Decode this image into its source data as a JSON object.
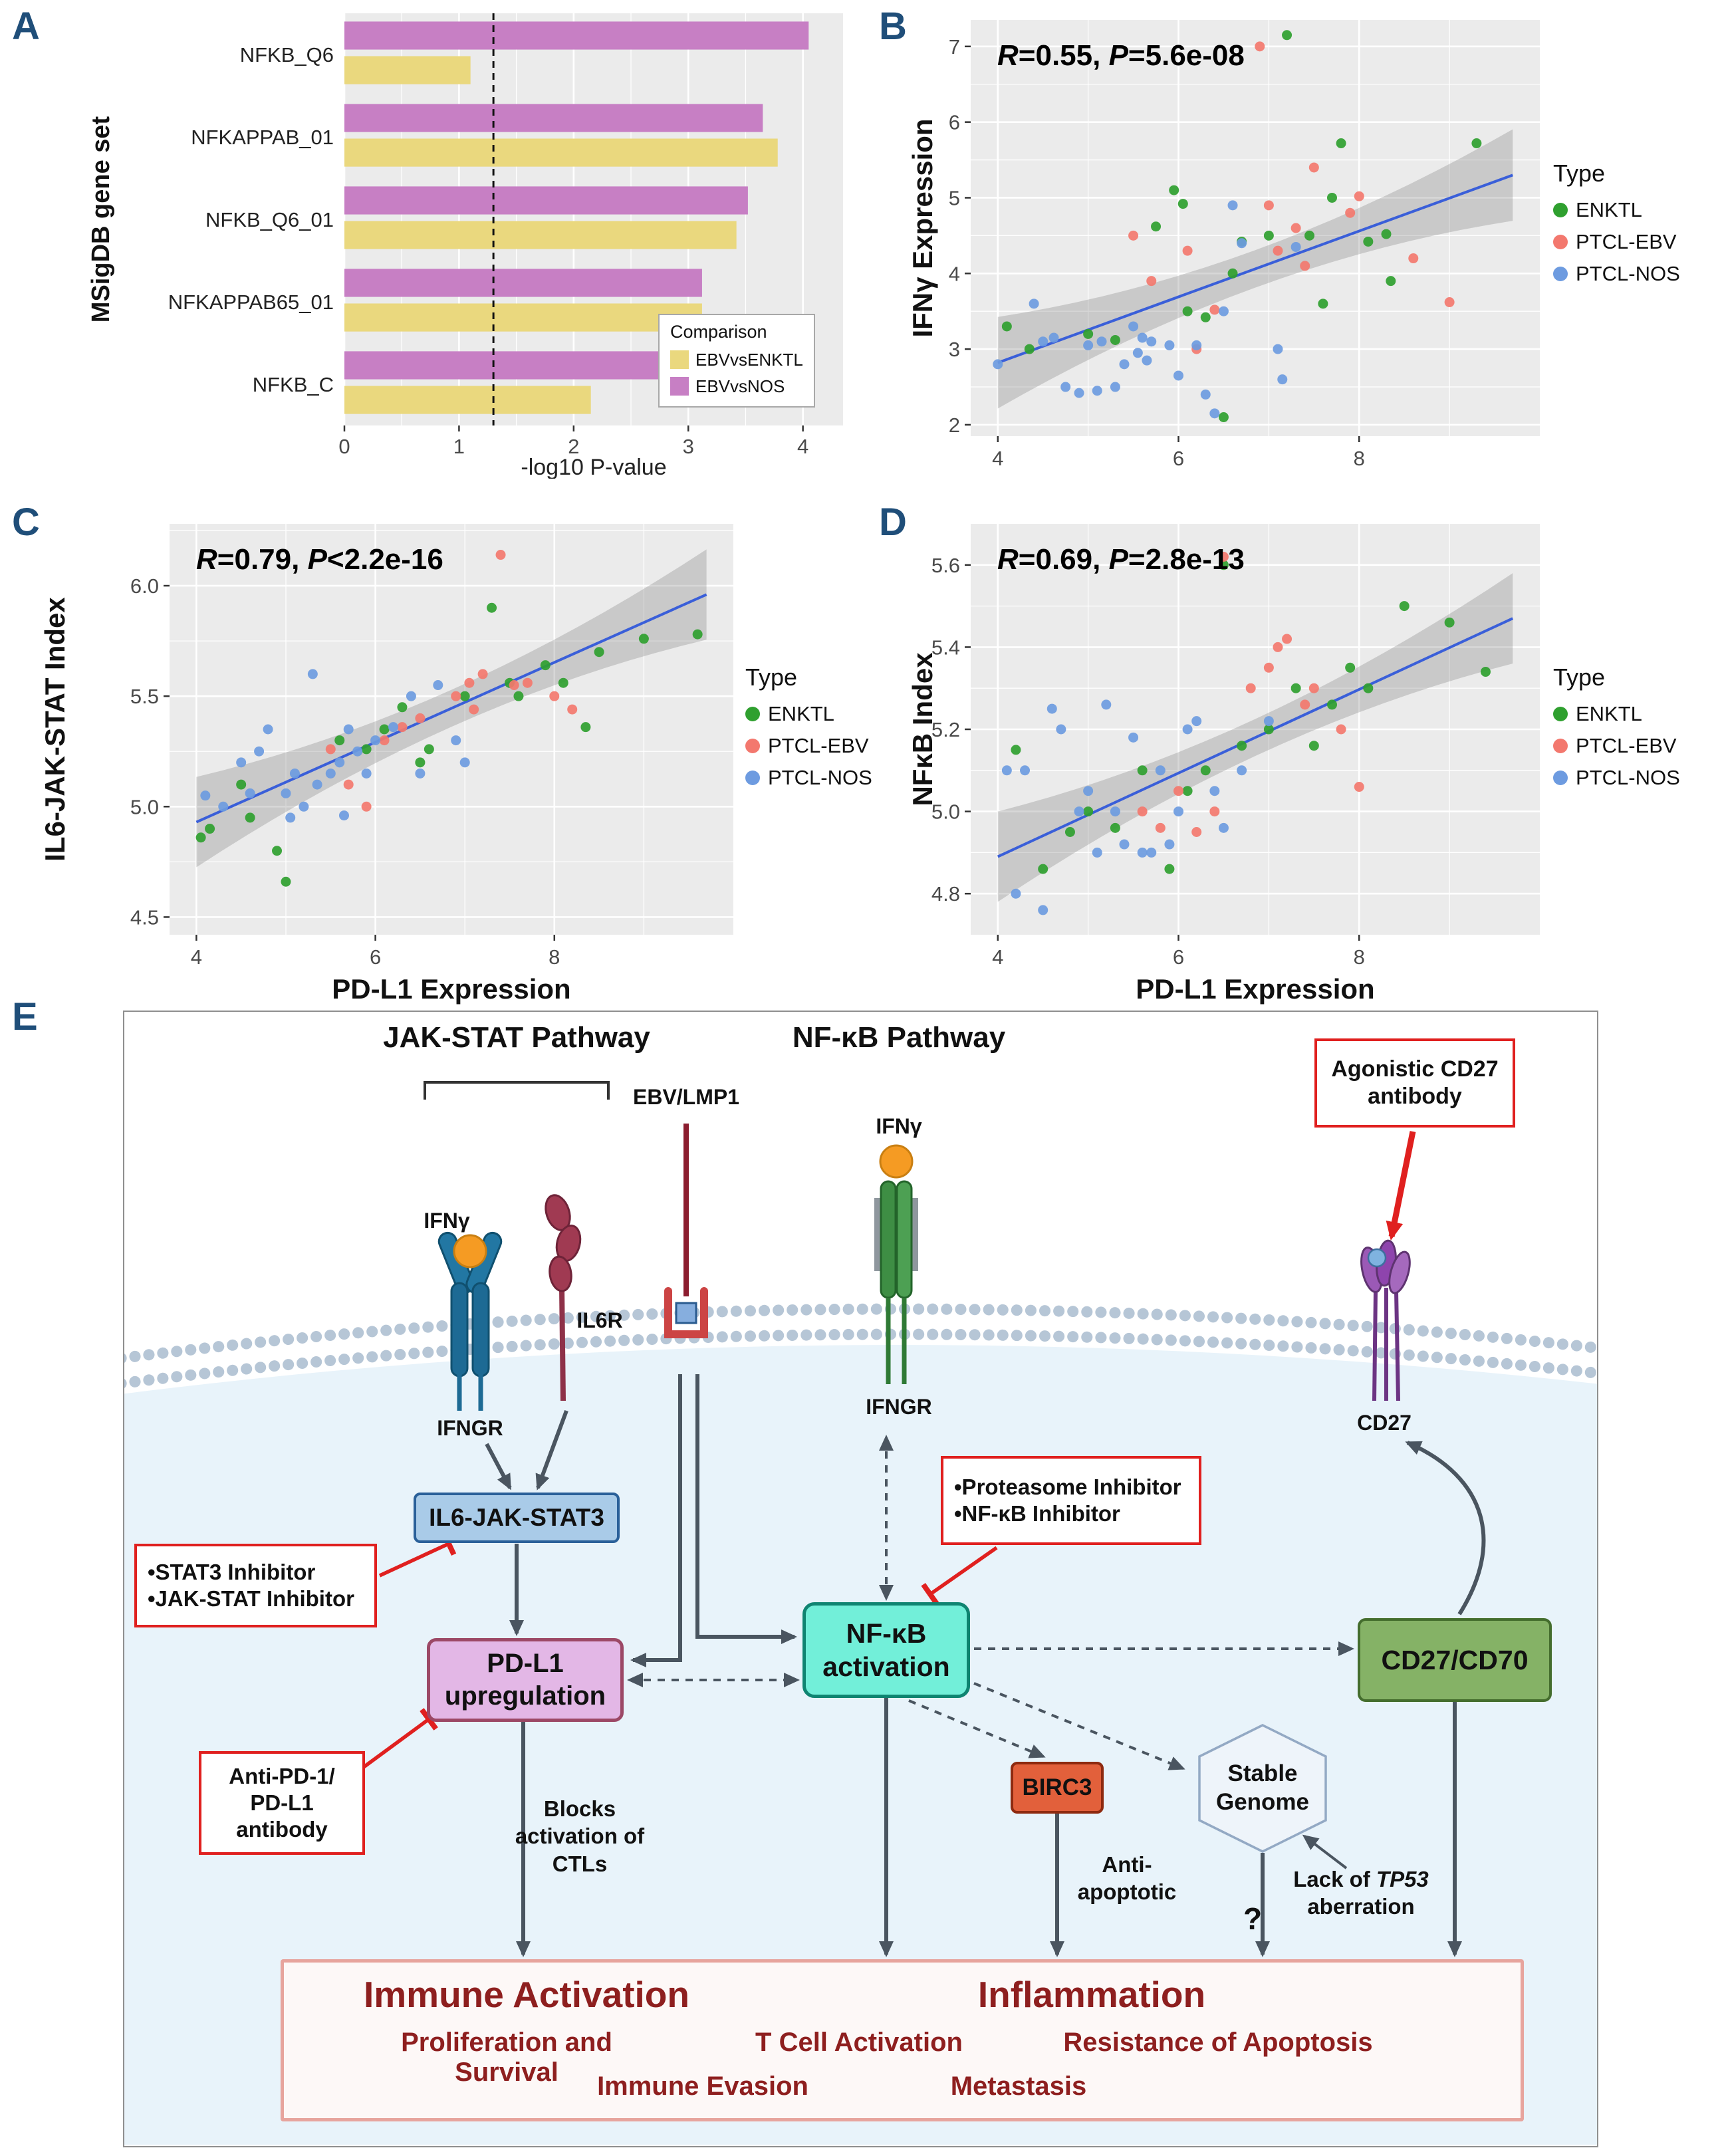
{
  "panels": {
    "a": {
      "label": "A"
    },
    "b": {
      "label": "B"
    },
    "c": {
      "label": "C"
    },
    "d": {
      "label": "D"
    },
    "e": {
      "label": "E"
    }
  },
  "chart_data": [
    {
      "type": "bar",
      "orientation": "horizontal",
      "ylabel": "MSigDB gene set",
      "xlabel": "-log10 P-value",
      "categories": [
        "NFKB_Q6",
        "NFKAPPAB_01",
        "NFKB_Q6_01",
        "NFKAPPAB65_01",
        "NFKB_C"
      ],
      "series": [
        {
          "name": "EBVvsENKTL",
          "color": "#ead87e",
          "values": [
            1.1,
            3.78,
            3.42,
            3.12,
            2.15
          ]
        },
        {
          "name": "EBVvsNOS",
          "color": "#c77fc4",
          "values": [
            4.05,
            3.65,
            3.52,
            3.12,
            3.05
          ]
        }
      ],
      "xlim": [
        0,
        4.35
      ],
      "xticks": [
        "0",
        "1",
        "2",
        "3",
        "4"
      ],
      "dashed_line_x": 1.3,
      "legend_title": "Comparison"
    },
    {
      "type": "scatter",
      "annotation": "R=0.55, P=5.6e-08",
      "ylabel": "IFNγ Expression",
      "xlabel": "",
      "xlim": [
        3.7,
        10.0
      ],
      "ylim": [
        1.85,
        7.35
      ],
      "xticks": [
        "4",
        "6",
        "8"
      ],
      "yticks": [
        "2",
        "3",
        "4",
        "5",
        "6",
        "7"
      ],
      "legend_title": "Type",
      "regression": {
        "x1": 4.0,
        "y1": 2.82,
        "x2": 9.7,
        "y2": 5.3
      },
      "series": [
        {
          "name": "ENKTL",
          "color": "#2fa02f",
          "points": [
            [
              4.1,
              3.3
            ],
            [
              4.35,
              3.0
            ],
            [
              5.0,
              3.2
            ],
            [
              5.3,
              3.12
            ],
            [
              5.75,
              4.62
            ],
            [
              5.95,
              5.1
            ],
            [
              6.05,
              4.92
            ],
            [
              6.1,
              3.5
            ],
            [
              6.3,
              3.42
            ],
            [
              6.5,
              2.1
            ],
            [
              6.6,
              4.0
            ],
            [
              6.7,
              4.42
            ],
            [
              7.0,
              4.5
            ],
            [
              7.2,
              7.15
            ],
            [
              7.45,
              4.5
            ],
            [
              7.6,
              3.6
            ],
            [
              7.7,
              5.0
            ],
            [
              7.8,
              5.72
            ],
            [
              8.1,
              4.42
            ],
            [
              8.3,
              4.52
            ],
            [
              8.35,
              3.9
            ],
            [
              9.3,
              5.72
            ]
          ]
        },
        {
          "name": "PTCL-EBV",
          "color": "#f3786e",
          "points": [
            [
              5.5,
              4.5
            ],
            [
              5.7,
              3.9
            ],
            [
              6.1,
              4.3
            ],
            [
              6.2,
              3.0
            ],
            [
              6.4,
              3.52
            ],
            [
              6.9,
              7.0
            ],
            [
              7.0,
              4.9
            ],
            [
              7.1,
              4.3
            ],
            [
              7.3,
              4.6
            ],
            [
              7.4,
              4.1
            ],
            [
              7.5,
              5.4
            ],
            [
              7.9,
              4.8
            ],
            [
              8.0,
              5.02
            ],
            [
              8.6,
              4.2
            ],
            [
              9.0,
              3.62
            ]
          ]
        },
        {
          "name": "PTCL-NOS",
          "color": "#6d9be0",
          "points": [
            [
              4.0,
              2.8
            ],
            [
              4.4,
              3.6
            ],
            [
              4.5,
              3.1
            ],
            [
              4.62,
              3.15
            ],
            [
              4.75,
              2.5
            ],
            [
              4.9,
              2.42
            ],
            [
              5.0,
              3.05
            ],
            [
              5.1,
              2.45
            ],
            [
              5.15,
              3.1
            ],
            [
              5.3,
              2.5
            ],
            [
              5.4,
              2.8
            ],
            [
              5.5,
              3.3
            ],
            [
              5.55,
              2.95
            ],
            [
              5.6,
              3.15
            ],
            [
              5.65,
              2.85
            ],
            [
              5.7,
              3.1
            ],
            [
              5.9,
              3.05
            ],
            [
              6.0,
              2.65
            ],
            [
              6.2,
              3.05
            ],
            [
              6.3,
              2.4
            ],
            [
              6.4,
              2.15
            ],
            [
              6.5,
              3.5
            ],
            [
              6.6,
              4.9
            ],
            [
              6.7,
              4.4
            ],
            [
              7.1,
              3.0
            ],
            [
              7.15,
              2.6
            ],
            [
              7.3,
              4.35
            ]
          ]
        }
      ]
    },
    {
      "type": "scatter",
      "annotation": "R=0.79, P<2.2e-16",
      "ylabel": "IL6-JAK-STAT Index",
      "xlabel": "PD-L1 Expression",
      "xlim": [
        3.7,
        10.0
      ],
      "ylim": [
        4.42,
        6.28
      ],
      "xticks": [
        "4",
        "6",
        "8"
      ],
      "yticks": [
        "4.5",
        "5.0",
        "5.5",
        "6.0"
      ],
      "legend_title": "Type",
      "regression": {
        "x1": 4.0,
        "y1": 4.93,
        "x2": 9.7,
        "y2": 5.96
      },
      "series": [
        {
          "name": "ENKTL",
          "color": "#2fa02f",
          "points": [
            [
              4.05,
              4.86
            ],
            [
              4.15,
              4.9
            ],
            [
              4.5,
              5.1
            ],
            [
              4.6,
              4.95
            ],
            [
              4.9,
              4.8
            ],
            [
              5.0,
              4.66
            ],
            [
              5.6,
              5.3
            ],
            [
              5.9,
              5.26
            ],
            [
              6.1,
              5.35
            ],
            [
              6.3,
              5.45
            ],
            [
              6.5,
              5.2
            ],
            [
              6.6,
              5.26
            ],
            [
              7.0,
              5.5
            ],
            [
              7.3,
              5.9
            ],
            [
              7.5,
              5.56
            ],
            [
              7.6,
              5.5
            ],
            [
              7.9,
              5.64
            ],
            [
              8.1,
              5.56
            ],
            [
              8.35,
              5.36
            ],
            [
              8.5,
              5.7
            ],
            [
              9.0,
              5.76
            ],
            [
              9.6,
              5.78
            ]
          ]
        },
        {
          "name": "PTCL-EBV",
          "color": "#f3786e",
          "points": [
            [
              5.5,
              5.26
            ],
            [
              5.7,
              5.1
            ],
            [
              5.9,
              5.0
            ],
            [
              6.1,
              5.3
            ],
            [
              6.3,
              5.36
            ],
            [
              6.5,
              5.4
            ],
            [
              6.9,
              5.5
            ],
            [
              7.05,
              5.56
            ],
            [
              7.1,
              5.44
            ],
            [
              7.2,
              5.6
            ],
            [
              7.4,
              6.14
            ],
            [
              7.55,
              5.55
            ],
            [
              7.7,
              5.56
            ],
            [
              8.0,
              5.5
            ],
            [
              8.2,
              5.44
            ]
          ]
        },
        {
          "name": "PTCL-NOS",
          "color": "#6d9be0",
          "points": [
            [
              4.1,
              5.05
            ],
            [
              4.3,
              5.0
            ],
            [
              4.5,
              5.2
            ],
            [
              4.6,
              5.06
            ],
            [
              4.7,
              5.25
            ],
            [
              4.8,
              5.35
            ],
            [
              5.0,
              5.06
            ],
            [
              5.05,
              4.95
            ],
            [
              5.1,
              5.15
            ],
            [
              5.2,
              5.0
            ],
            [
              5.3,
              5.6
            ],
            [
              5.35,
              5.1
            ],
            [
              5.5,
              5.15
            ],
            [
              5.6,
              5.2
            ],
            [
              5.65,
              4.96
            ],
            [
              5.7,
              5.35
            ],
            [
              5.8,
              5.25
            ],
            [
              5.9,
              5.15
            ],
            [
              6.0,
              5.3
            ],
            [
              6.2,
              5.36
            ],
            [
              6.4,
              5.5
            ],
            [
              6.5,
              5.15
            ],
            [
              6.7,
              5.55
            ],
            [
              6.9,
              5.3
            ],
            [
              7.0,
              5.2
            ]
          ]
        }
      ]
    },
    {
      "type": "scatter",
      "annotation": "R=0.69, P=2.8e-13",
      "ylabel": "NFκB Index",
      "xlabel": "PD-L1 Expression",
      "xlim": [
        3.7,
        10.0
      ],
      "ylim": [
        4.7,
        5.7
      ],
      "xticks": [
        "4",
        "6",
        "8"
      ],
      "yticks": [
        "4.8",
        "5.0",
        "5.2",
        "5.4",
        "5.6"
      ],
      "legend_title": "Type",
      "regression": {
        "x1": 4.0,
        "y1": 4.89,
        "x2": 9.7,
        "y2": 5.47
      },
      "series": [
        {
          "name": "ENKTL",
          "color": "#2fa02f",
          "points": [
            [
              4.2,
              5.15
            ],
            [
              4.5,
              4.86
            ],
            [
              4.8,
              4.95
            ],
            [
              5.0,
              5.0
            ],
            [
              5.3,
              4.96
            ],
            [
              5.6,
              5.1
            ],
            [
              5.9,
              4.86
            ],
            [
              6.1,
              5.05
            ],
            [
              6.3,
              5.1
            ],
            [
              6.5,
              5.6
            ],
            [
              6.7,
              5.16
            ],
            [
              7.0,
              5.2
            ],
            [
              7.3,
              5.3
            ],
            [
              7.5,
              5.16
            ],
            [
              7.7,
              5.26
            ],
            [
              7.9,
              5.35
            ],
            [
              8.1,
              5.3
            ],
            [
              8.5,
              5.5
            ],
            [
              9.0,
              5.46
            ],
            [
              9.4,
              5.34
            ]
          ]
        },
        {
          "name": "PTCL-EBV",
          "color": "#f3786e",
          "points": [
            [
              5.6,
              5.0
            ],
            [
              5.8,
              4.96
            ],
            [
              6.0,
              5.05
            ],
            [
              6.2,
              4.95
            ],
            [
              6.4,
              5.0
            ],
            [
              6.5,
              5.62
            ],
            [
              6.8,
              5.3
            ],
            [
              7.0,
              5.35
            ],
            [
              7.1,
              5.4
            ],
            [
              7.2,
              5.42
            ],
            [
              7.4,
              5.26
            ],
            [
              7.5,
              5.3
            ],
            [
              7.8,
              5.2
            ],
            [
              8.0,
              5.06
            ]
          ]
        },
        {
          "name": "PTCL-NOS",
          "color": "#6d9be0",
          "points": [
            [
              4.1,
              5.1
            ],
            [
              4.2,
              4.8
            ],
            [
              4.3,
              5.1
            ],
            [
              4.5,
              4.76
            ],
            [
              4.6,
              5.25
            ],
            [
              4.7,
              5.2
            ],
            [
              4.9,
              5.0
            ],
            [
              5.0,
              5.05
            ],
            [
              5.1,
              4.9
            ],
            [
              5.2,
              5.26
            ],
            [
              5.3,
              5.0
            ],
            [
              5.4,
              4.92
            ],
            [
              5.5,
              5.18
            ],
            [
              5.6,
              4.9
            ],
            [
              5.7,
              4.9
            ],
            [
              5.8,
              5.1
            ],
            [
              5.9,
              4.92
            ],
            [
              6.0,
              5.0
            ],
            [
              6.1,
              5.2
            ],
            [
              6.2,
              5.22
            ],
            [
              6.4,
              5.05
            ],
            [
              6.5,
              4.96
            ],
            [
              6.7,
              5.1
            ],
            [
              7.0,
              5.22
            ]
          ]
        }
      ]
    }
  ],
  "diagram": {
    "jak_title": "JAK-STAT Pathway",
    "nfkb_title": "NF-κB Pathway",
    "receptors": {
      "ifng_left": "IFNγ",
      "ifngr_left": "IFNGR",
      "il6r": "IL6R",
      "ebv_lmp1": "EBV/LMP1",
      "ifng_right": "IFNγ",
      "ifngr_right": "IFNGR",
      "cd27": "CD27"
    },
    "boxes": {
      "agonistic_line1": "Agonistic CD27",
      "agonistic_line2": "antibody",
      "il6_jak_stat3": "IL6-JAK-STAT3",
      "stat3_inh_line1": "•STAT3 Inhibitor",
      "stat3_inh_line2": "•JAK-STAT Inhibitor",
      "pdl1_line1": "PD-L1",
      "pdl1_line2": "upregulation",
      "anti_pd1_line1": "Anti-PD-1/",
      "anti_pd1_line2": "PD-L1",
      "anti_pd1_line3": "antibody",
      "nfkb_line1": "NF-κB",
      "nfkb_line2": "activation",
      "prot_inh_line1": "•Proteasome Inhibitor",
      "prot_inh_line2": "•NF-κB Inhibitor",
      "cd27_cd70": "CD27/CD70",
      "birc3": "BIRC3",
      "stable_line1": "Stable",
      "stable_line2": "Genome"
    },
    "notes": {
      "blocks_line1": "Blocks",
      "blocks_line2": "activation of",
      "blocks_line3": "CTLs",
      "anti_apoptotic_line1": "Anti-",
      "anti_apoptotic_line2": "apoptotic",
      "question_mark": "?",
      "tp53_pre": "Lack of ",
      "tp53_gene": "TP53",
      "tp53_line2": "aberration"
    },
    "outcome": {
      "title_left": "Immune Activation",
      "title_right": "Inflammation",
      "items_row2": [
        "Proliferation and Survival",
        "T Cell Activation",
        "Resistance of Apoptosis"
      ],
      "items_row3": [
        "Immune Evasion",
        "Metastasis"
      ]
    }
  }
}
